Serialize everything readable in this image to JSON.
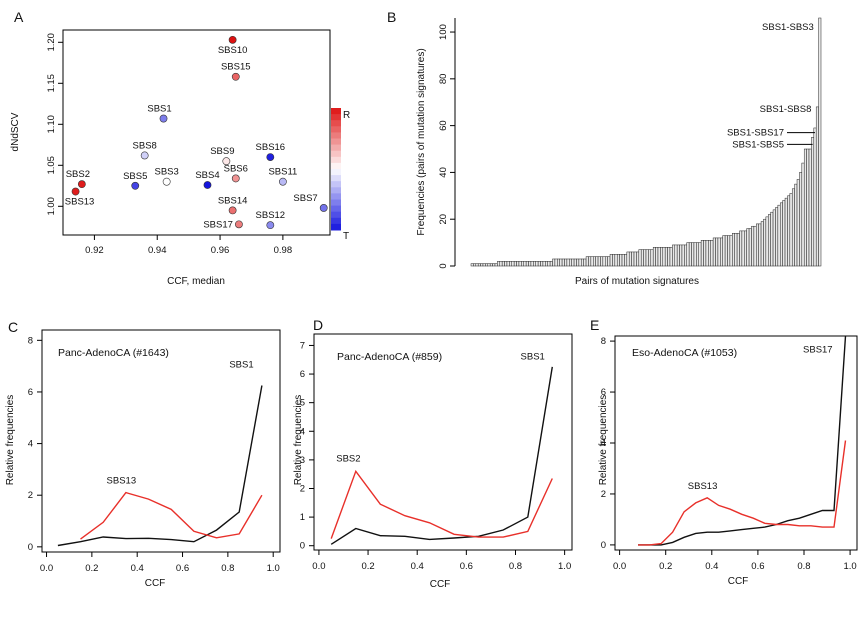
{
  "figure": {
    "colors": {
      "axis": "#000000",
      "black_line": "#111111",
      "red_line": "#e8302a",
      "bar_fill": "#e8e8e8",
      "bar_stroke": "#222222",
      "red": "#dd1111",
      "blue": "#1414dd",
      "white": "#ffffff"
    }
  },
  "chart_data": [
    {
      "panel": "A",
      "type": "scatter",
      "xlabel": "CCF, median",
      "ylabel": "dNdSCV",
      "xlim": [
        0.91,
        0.995
      ],
      "ylim": [
        0.965,
        1.215
      ],
      "x_ticks": [
        0.92,
        0.94,
        0.96,
        0.98
      ],
      "x_tick_labels": [
        "0.92",
        "0.94",
        "0.96",
        "0.98"
      ],
      "y_ticks": [
        1.0,
        1.05,
        1.1,
        1.15,
        1.2
      ],
      "y_tick_labels": [
        "1.00",
        "1.05",
        "1.10",
        "1.15",
        "1.20"
      ],
      "legend": {
        "top": "R",
        "bottom": "T"
      },
      "color_scale": {
        "min": -1,
        "max": 1
      },
      "points": [
        {
          "label": "SBS10",
          "x": 0.964,
          "y": 1.203,
          "c": 1.0,
          "lab_dx": 0,
          "lab_dy": 1,
          "lab_anchor": "middle"
        },
        {
          "label": "SBS15",
          "x": 0.965,
          "y": 1.158,
          "c": 0.65,
          "lab_dx": 0,
          "lab_dy": -1,
          "lab_anchor": "middle"
        },
        {
          "label": "SBS1",
          "x": 0.942,
          "y": 1.107,
          "c": -0.55,
          "lab_dx": -1,
          "lab_dy": -1,
          "lab_anchor": "middle"
        },
        {
          "label": "SBS8",
          "x": 0.936,
          "y": 1.062,
          "c": -0.2,
          "lab_dx": 0,
          "lab_dy": -1,
          "lab_anchor": "middle"
        },
        {
          "label": "SBS9",
          "x": 0.962,
          "y": 1.055,
          "c": 0.1,
          "lab_dx": -1,
          "lab_dy": -1,
          "lab_anchor": "middle"
        },
        {
          "label": "SBS16",
          "x": 0.976,
          "y": 1.06,
          "c": -0.95,
          "lab_dx": 0,
          "lab_dy": -1,
          "lab_anchor": "middle"
        },
        {
          "label": "SBS6",
          "x": 0.965,
          "y": 1.034,
          "c": 0.45,
          "lab_dx": 0,
          "lab_dy": -1,
          "lab_anchor": "middle"
        },
        {
          "label": "SBS3",
          "x": 0.943,
          "y": 1.03,
          "c": 0.0,
          "lab_dx": 0,
          "lab_dy": -1,
          "lab_anchor": "middle"
        },
        {
          "label": "SBS4",
          "x": 0.956,
          "y": 1.026,
          "c": -1.0,
          "lab_dx": 0,
          "lab_dy": -1,
          "lab_anchor": "middle"
        },
        {
          "label": "SBS11",
          "x": 0.98,
          "y": 1.03,
          "c": -0.3,
          "lab_dx": 0,
          "lab_dy": -1,
          "lab_anchor": "middle"
        },
        {
          "label": "SBS5",
          "x": 0.933,
          "y": 1.025,
          "c": -0.8,
          "lab_dx": 0,
          "lab_dy": -1,
          "lab_anchor": "middle"
        },
        {
          "label": "SBS2",
          "x": 0.916,
          "y": 1.027,
          "c": 0.95,
          "lab_dx": -1,
          "lab_dy": -1,
          "lab_anchor": "middle"
        },
        {
          "label": "SBS13",
          "x": 0.914,
          "y": 1.018,
          "c": 0.95,
          "lab_dx": 1,
          "lab_dy": 1,
          "lab_anchor": "middle"
        },
        {
          "label": "SBS7",
          "x": 0.993,
          "y": 0.998,
          "c": -0.6,
          "lab_dx": -1,
          "lab_dy": -1,
          "lab_anchor": "end"
        },
        {
          "label": "SBS14",
          "x": 0.964,
          "y": 0.995,
          "c": 0.6,
          "lab_dx": 0,
          "lab_dy": -1,
          "lab_anchor": "middle"
        },
        {
          "label": "SBS17",
          "x": 0.966,
          "y": 0.978,
          "c": 0.55,
          "lab_dx": -1,
          "lab_dy": 0,
          "lab_anchor": "end"
        },
        {
          "label": "SBS12",
          "x": 0.976,
          "y": 0.977,
          "c": -0.5,
          "lab_dx": 0,
          "lab_dy": -1,
          "lab_anchor": "middle"
        }
      ]
    },
    {
      "panel": "B",
      "type": "bar",
      "xlabel": "Pairs of mutation signatures",
      "ylabel": "Frequencies (pairs of mutation signatures)",
      "ylim": [
        0,
        106
      ],
      "y_ticks": [
        0,
        20,
        40,
        60,
        80,
        100
      ],
      "y_tick_labels": [
        "0",
        "20",
        "40",
        "60",
        "80",
        "100"
      ],
      "values": [
        1,
        1,
        1,
        1,
        1,
        1,
        1,
        1,
        1,
        1,
        1,
        2,
        2,
        2,
        2,
        2,
        2,
        2,
        2,
        2,
        2,
        2,
        2,
        2,
        2,
        2,
        2,
        2,
        2,
        2,
        2,
        2,
        2,
        2,
        3,
        3,
        3,
        3,
        3,
        3,
        3,
        3,
        3,
        3,
        3,
        3,
        3,
        3,
        4,
        4,
        4,
        4,
        4,
        4,
        4,
        4,
        4,
        4,
        5,
        5,
        5,
        5,
        5,
        5,
        5,
        6,
        6,
        6,
        6,
        6,
        7,
        7,
        7,
        7,
        7,
        7,
        8,
        8,
        8,
        8,
        8,
        8,
        8,
        8,
        9,
        9,
        9,
        9,
        9,
        9,
        10,
        10,
        10,
        10,
        10,
        10,
        11,
        11,
        11,
        11,
        11,
        12,
        12,
        12,
        12,
        13,
        13,
        13,
        13,
        14,
        14,
        14,
        15,
        15,
        15,
        16,
        16,
        17,
        17,
        18,
        18,
        19,
        20,
        21,
        22,
        23,
        24,
        25,
        26,
        27,
        28,
        29,
        30,
        31,
        33,
        35,
        37,
        40,
        44,
        50,
        50,
        50,
        55,
        59,
        68,
        106
      ],
      "annotations": [
        {
          "text": "SBS1-SBS3",
          "bar": "last"
        },
        {
          "text": "SBS1-SBS8",
          "bar": "second_last"
        },
        {
          "text": "SBS1-SBS17",
          "bar": "third_last"
        },
        {
          "text": "SBS1-SBS5",
          "bar": "fourth_last"
        }
      ]
    },
    {
      "panel": "C",
      "type": "line",
      "title": "Panc-AdenoCA (#1643)",
      "xlabel": "CCF",
      "ylabel": "Relative frequencies",
      "xlim": [
        -0.02,
        1.03
      ],
      "ylim": [
        -0.2,
        8.4
      ],
      "x_ticks": [
        0.0,
        0.2,
        0.4,
        0.6,
        0.8,
        1.0
      ],
      "x_tick_labels": [
        "0.0",
        "0.2",
        "0.4",
        "0.6",
        "0.8",
        "1.0"
      ],
      "y_ticks": [
        0,
        2,
        4,
        6,
        8
      ],
      "y_tick_labels": [
        "0",
        "2",
        "4",
        "6",
        "8"
      ],
      "series": [
        {
          "name": "SBS1",
          "color": "black",
          "x": [
            0.05,
            0.15,
            0.25,
            0.35,
            0.45,
            0.55,
            0.65,
            0.75,
            0.85,
            0.95
          ],
          "y": [
            0.05,
            0.2,
            0.38,
            0.32,
            0.33,
            0.28,
            0.2,
            0.65,
            1.35,
            6.25
          ]
        },
        {
          "name": "SBS13",
          "color": "red",
          "x": [
            0.15,
            0.25,
            0.35,
            0.45,
            0.55,
            0.65,
            0.75,
            0.85,
            0.95
          ],
          "y": [
            0.3,
            0.95,
            2.1,
            1.85,
            1.45,
            0.6,
            0.35,
            0.5,
            2.0
          ]
        }
      ],
      "labels": [
        {
          "text": "SBS1",
          "x": 0.86,
          "y": 6.95
        },
        {
          "text": "SBS13",
          "x": 0.33,
          "y": 2.45
        }
      ]
    },
    {
      "panel": "D",
      "type": "line",
      "title": "Panc-AdenoCA (#859)",
      "xlabel": "CCF",
      "ylabel": "Relative frequencies",
      "xlim": [
        -0.02,
        1.03
      ],
      "ylim": [
        -0.15,
        7.4
      ],
      "x_ticks": [
        0.0,
        0.2,
        0.4,
        0.6,
        0.8,
        1.0
      ],
      "x_tick_labels": [
        "0.0",
        "0.2",
        "0.4",
        "0.6",
        "0.8",
        "1.0"
      ],
      "y_ticks": [
        0,
        1,
        2,
        3,
        4,
        5,
        6,
        7
      ],
      "y_tick_labels": [
        "0",
        "1",
        "2",
        "3",
        "4",
        "5",
        "6",
        "7"
      ],
      "series": [
        {
          "name": "SBS1",
          "color": "black",
          "x": [
            0.05,
            0.15,
            0.25,
            0.35,
            0.45,
            0.55,
            0.65,
            0.75,
            0.85,
            0.95
          ],
          "y": [
            0.05,
            0.6,
            0.35,
            0.33,
            0.22,
            0.27,
            0.33,
            0.55,
            1.0,
            6.25
          ]
        },
        {
          "name": "SBS2",
          "color": "red",
          "x": [
            0.05,
            0.15,
            0.25,
            0.35,
            0.45,
            0.55,
            0.65,
            0.75,
            0.85,
            0.95
          ],
          "y": [
            0.25,
            2.6,
            1.45,
            1.05,
            0.8,
            0.4,
            0.3,
            0.3,
            0.5,
            2.35
          ]
        }
      ],
      "labels": [
        {
          "text": "SBS1",
          "x": 0.87,
          "y": 6.5
        },
        {
          "text": "SBS2",
          "x": 0.12,
          "y": 2.95
        }
      ]
    },
    {
      "panel": "E",
      "type": "line",
      "title": "Eso-AdenoCA (#1053)",
      "xlabel": "CCF",
      "ylabel": "Relative frequencies",
      "xlim": [
        -0.02,
        1.03
      ],
      "ylim": [
        -0.2,
        8.2
      ],
      "x_ticks": [
        0.0,
        0.2,
        0.4,
        0.6,
        0.8,
        1.0
      ],
      "x_tick_labels": [
        "0.0",
        "0.2",
        "0.4",
        "0.6",
        "0.8",
        "1.0"
      ],
      "y_ticks": [
        0,
        2,
        4,
        6,
        8
      ],
      "y_tick_labels": [
        "0",
        "2",
        "4",
        "6",
        "8"
      ],
      "series": [
        {
          "name": "SBS17",
          "color": "black",
          "x": [
            0.08,
            0.13,
            0.18,
            0.23,
            0.28,
            0.33,
            0.38,
            0.43,
            0.48,
            0.53,
            0.58,
            0.63,
            0.68,
            0.73,
            0.78,
            0.83,
            0.88,
            0.93,
            0.98
          ],
          "y": [
            0.0,
            0.0,
            0.0,
            0.1,
            0.3,
            0.45,
            0.5,
            0.5,
            0.55,
            0.6,
            0.65,
            0.7,
            0.8,
            0.95,
            1.05,
            1.2,
            1.35,
            1.35,
            8.3
          ]
        },
        {
          "name": "SBS13",
          "color": "red",
          "x": [
            0.08,
            0.13,
            0.18,
            0.23,
            0.28,
            0.33,
            0.38,
            0.43,
            0.48,
            0.53,
            0.58,
            0.63,
            0.68,
            0.73,
            0.78,
            0.83,
            0.88,
            0.93,
            0.98
          ],
          "y": [
            0.0,
            0.0,
            0.05,
            0.5,
            1.3,
            1.65,
            1.85,
            1.55,
            1.4,
            1.2,
            1.05,
            0.85,
            0.8,
            0.8,
            0.75,
            0.75,
            0.7,
            0.7,
            4.1
          ]
        }
      ],
      "labels": [
        {
          "text": "SBS17",
          "x": 0.86,
          "y": 7.55
        },
        {
          "text": "SBS13",
          "x": 0.36,
          "y": 2.2
        }
      ]
    }
  ]
}
